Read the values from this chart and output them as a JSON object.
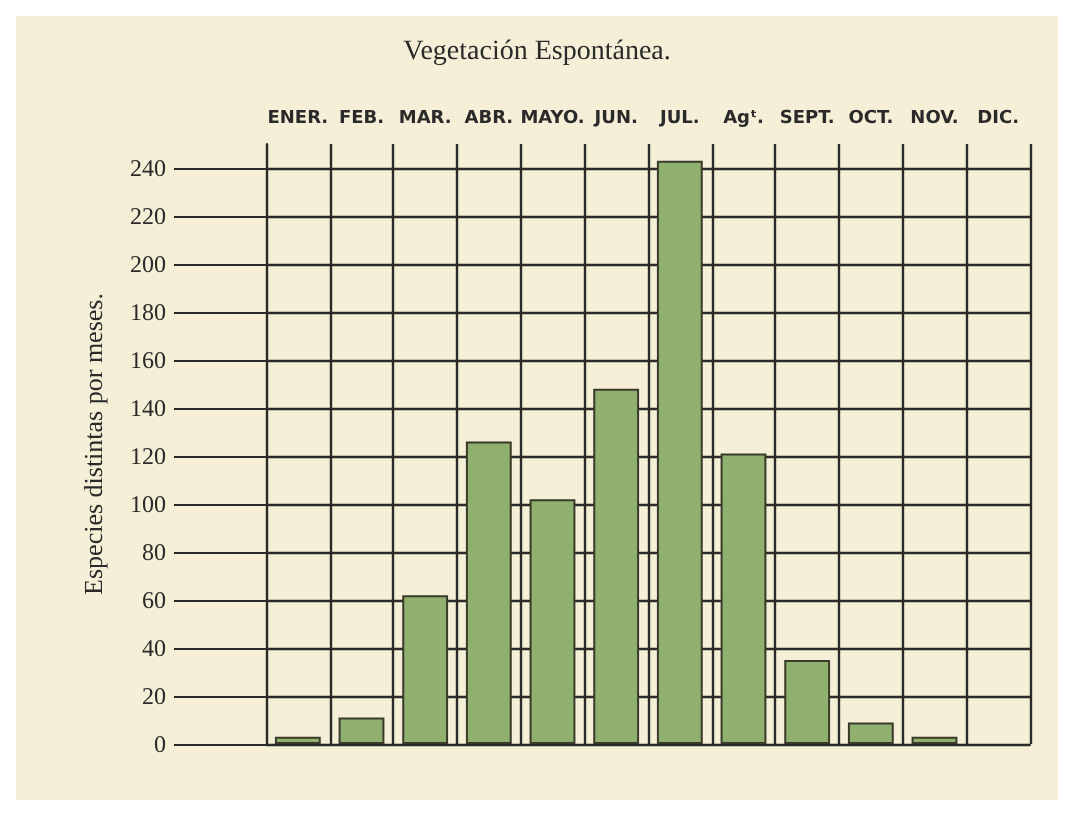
{
  "chart_data": {
    "type": "bar",
    "title": "Vegetación Espontánea.",
    "ylabel": "Especies distintas por meses.",
    "categories": [
      "ENER.",
      "FEB.",
      "MAR.",
      "ABR.",
      "MAYO.",
      "JUN.",
      "JUL.",
      "Agᵗ.",
      "SEPT.",
      "OCT.",
      "NOV.",
      "DIC."
    ],
    "values": [
      3,
      11,
      62,
      126,
      102,
      148,
      243,
      121,
      35,
      9,
      3,
      0
    ],
    "color": "#8fb06f",
    "ylim": [
      0,
      250
    ],
    "yticks": [
      0,
      20,
      40,
      60,
      80,
      100,
      120,
      140,
      160,
      180,
      200,
      220,
      240
    ],
    "grid": true
  }
}
